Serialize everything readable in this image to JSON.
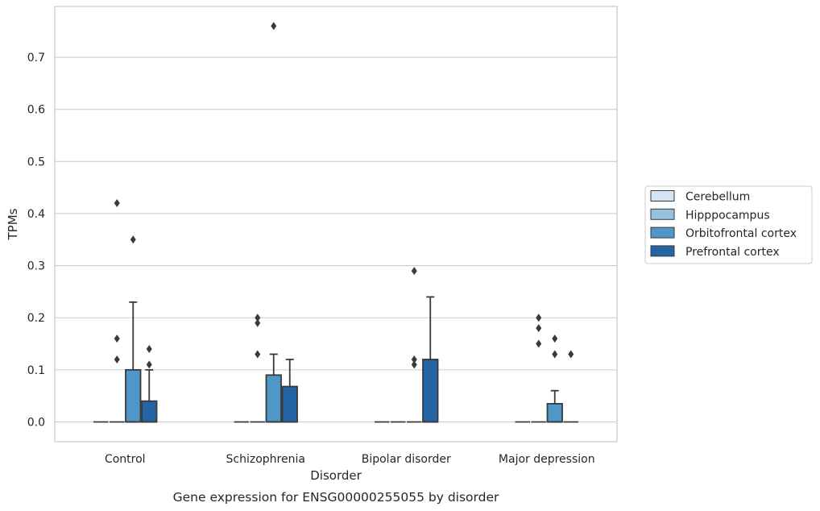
{
  "chart_data": {
    "type": "box",
    "title": "",
    "caption": "Gene expression for ENSG00000255055 by disorder",
    "xlabel": "Disorder",
    "ylabel": "TPMs",
    "ylim": [
      -0.038,
      0.8
    ],
    "yticks": [
      0.0,
      0.1,
      0.2,
      0.3,
      0.4,
      0.5,
      0.6,
      0.7
    ],
    "ytick_labels": [
      "0.0",
      "0.1",
      "0.2",
      "0.3",
      "0.4",
      "0.5",
      "0.6",
      "0.7"
    ],
    "grid": "horizontal",
    "legend_placement": "right",
    "categories": [
      "Control",
      "Schizophrenia",
      "Bipolar disorder",
      "Major depression"
    ],
    "series": [
      {
        "name": "Cerebellum",
        "color": "#d4e4f3",
        "boxes": [
          {
            "q1": 0,
            "median": 0,
            "q3": 0,
            "whisker_low": 0,
            "whisker_high": 0,
            "outliers": []
          },
          {
            "q1": 0,
            "median": 0,
            "q3": 0,
            "whisker_low": 0,
            "whisker_high": 0,
            "outliers": []
          },
          {
            "q1": 0,
            "median": 0,
            "q3": 0,
            "whisker_low": 0,
            "whisker_high": 0,
            "outliers": []
          },
          {
            "q1": 0,
            "median": 0,
            "q3": 0,
            "whisker_low": 0,
            "whisker_high": 0,
            "outliers": []
          }
        ]
      },
      {
        "name": "Hipppocampus",
        "color": "#97c1dd",
        "boxes": [
          {
            "q1": 0,
            "median": 0,
            "q3": 0,
            "whisker_low": 0,
            "whisker_high": 0,
            "outliers": [
              0.42,
              0.16,
              0.12
            ]
          },
          {
            "q1": 0,
            "median": 0,
            "q3": 0,
            "whisker_low": 0,
            "whisker_high": 0,
            "outliers": [
              0.2,
              0.19,
              0.13
            ]
          },
          {
            "q1": 0,
            "median": 0,
            "q3": 0,
            "whisker_low": 0,
            "whisker_high": 0,
            "outliers": []
          },
          {
            "q1": 0,
            "median": 0,
            "q3": 0,
            "whisker_low": 0,
            "whisker_high": 0,
            "outliers": [
              0.2,
              0.18,
              0.15
            ]
          }
        ]
      },
      {
        "name": "Orbitofrontal cortex",
        "color": "#5096c7",
        "boxes": [
          {
            "q1": 0,
            "median": 0,
            "q3": 0.1,
            "whisker_low": 0,
            "whisker_high": 0.23,
            "outliers": [
              0.35
            ]
          },
          {
            "q1": 0,
            "median": 0,
            "q3": 0.09,
            "whisker_low": 0,
            "whisker_high": 0.13,
            "outliers": [
              0.76
            ]
          },
          {
            "q1": 0,
            "median": 0,
            "q3": 0,
            "whisker_low": 0,
            "whisker_high": 0,
            "outliers": [
              0.29,
              0.12,
              0.11
            ]
          },
          {
            "q1": 0,
            "median": 0,
            "q3": 0.035,
            "whisker_low": 0,
            "whisker_high": 0.06,
            "outliers": [
              0.16,
              0.13
            ]
          }
        ]
      },
      {
        "name": "Prefrontal cortex",
        "color": "#2464a5",
        "boxes": [
          {
            "q1": 0,
            "median": 0,
            "q3": 0.04,
            "whisker_low": 0,
            "whisker_high": 0.1,
            "outliers": [
              0.14,
              0.11
            ]
          },
          {
            "q1": 0,
            "median": 0,
            "q3": 0.068,
            "whisker_low": 0,
            "whisker_high": 0.12,
            "outliers": []
          },
          {
            "q1": 0,
            "median": 0,
            "q3": 0.12,
            "whisker_low": 0,
            "whisker_high": 0.24,
            "outliers": []
          },
          {
            "q1": 0,
            "median": 0,
            "q3": 0,
            "whisker_low": 0,
            "whisker_high": 0,
            "outliers": [
              0.13
            ]
          }
        ]
      }
    ]
  }
}
